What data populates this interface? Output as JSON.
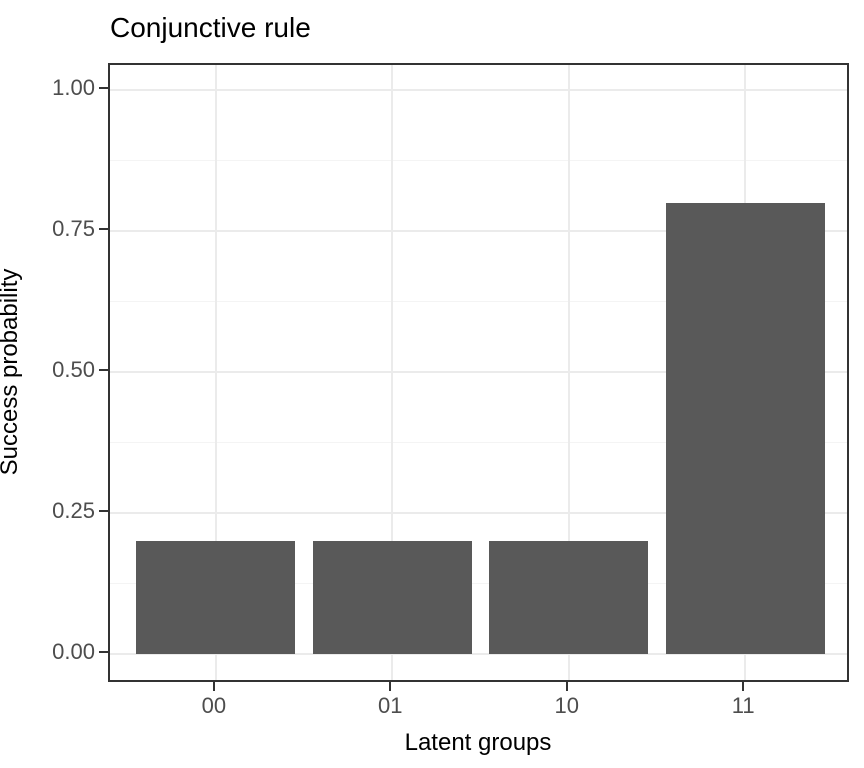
{
  "chart_data": {
    "type": "bar",
    "title": "Conjunctive rule",
    "xlabel": "Latent groups",
    "ylabel": "Success probability",
    "categories": [
      "00",
      "01",
      "10",
      "11"
    ],
    "values": [
      0.2,
      0.2,
      0.2,
      0.8
    ],
    "ylim": [
      0,
      1
    ],
    "yticks": [
      0.0,
      0.25,
      0.5,
      0.75,
      1.0
    ],
    "ytick_labels": [
      "0.00",
      "0.25",
      "0.50",
      "0.75",
      "1.00"
    ],
    "yticks_minor": [
      0.125,
      0.375,
      0.625,
      0.875
    ],
    "grid": "on",
    "legend": "none",
    "style": {
      "bar_color": "#595959",
      "panel_border_color": "#333333",
      "grid_major_color": "#ebebeb",
      "grid_minor_color": "#f4f4f4",
      "tick_label_color": "#4d4d4d",
      "text_color": "#000000",
      "background_color": "#ffffff"
    }
  }
}
